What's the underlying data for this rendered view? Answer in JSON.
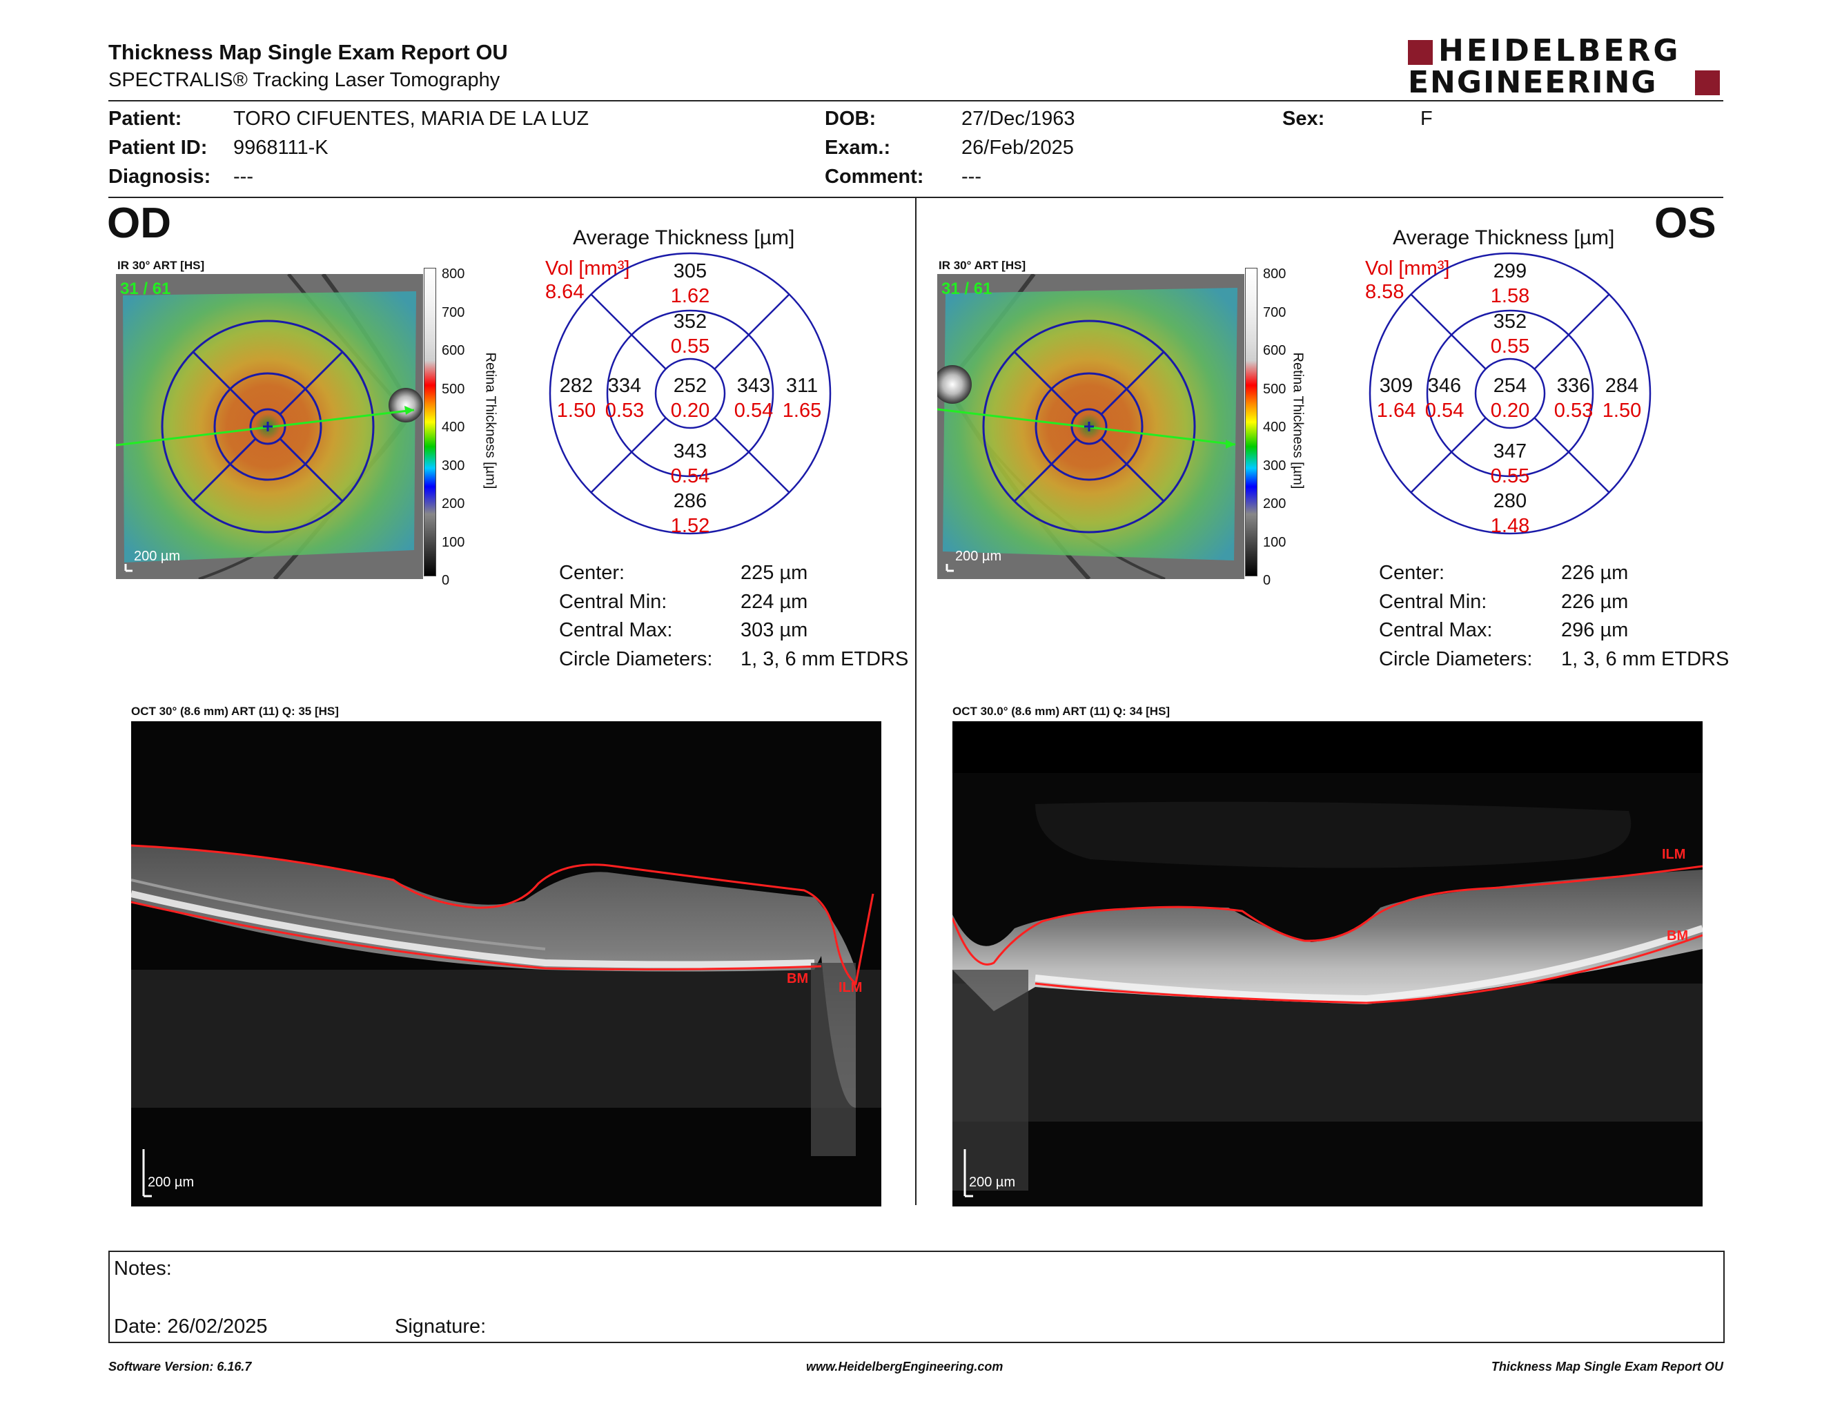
{
  "header": {
    "title": "Thickness Map Single Exam Report OU",
    "subtitle": "SPECTRALIS® Tracking Laser Tomography",
    "logo_line1": "HEIDELBERG",
    "logo_line2": "ENGINEERING",
    "brand_color": "#8b1a2b"
  },
  "patient": {
    "patient_label": "Patient:",
    "patient_value": "TORO CIFUENTES, MARIA DE LA LUZ",
    "id_label": "Patient ID:",
    "id_value": "9968111-K",
    "diagnosis_label": "Diagnosis:",
    "diagnosis_value": "---",
    "dob_label": "DOB:",
    "dob_value": "27/Dec/1963",
    "exam_label": "Exam.:",
    "exam_value": "26/Feb/2025",
    "comment_label": "Comment:",
    "comment_value": "---",
    "sex_label": "Sex:",
    "sex_value": "F"
  },
  "scale": {
    "labels": [
      "800",
      "700",
      "600",
      "500",
      "400",
      "300",
      "200",
      "100",
      "0"
    ],
    "title": "Retina  Thickness [µm]"
  },
  "od": {
    "eye": "OD",
    "ir_label": "IR 30° ART [HS]",
    "fundus_text": "31 / 61",
    "scale_bar": "200 µm",
    "avg_title": "Average Thickness [µm]",
    "vol_label": "Vol [mm³]",
    "vol_value": "8.64",
    "grid": {
      "center_t": "252",
      "center_v": "0.20",
      "in_sup_t": "352",
      "in_sup_v": "0.55",
      "in_inf_t": "343",
      "in_inf_v": "0.54",
      "in_tmp_t": "334",
      "in_tmp_v": "0.53",
      "in_nas_t": "343",
      "in_nas_v": "0.54",
      "out_sup_t": "305",
      "out_sup_v": "1.62",
      "out_inf_t": "286",
      "out_inf_v": "1.52",
      "out_tmp_t": "282",
      "out_tmp_v": "1.50",
      "out_nas_t": "311",
      "out_nas_v": "1.65"
    },
    "stats": [
      {
        "label": "Center:",
        "value": "225 µm"
      },
      {
        "label": "Central Min:",
        "value": "224 µm"
      },
      {
        "label": "Central Max:",
        "value": "303 µm"
      },
      {
        "label": "Circle Diameters:",
        "value": "1, 3, 6 mm ETDRS"
      }
    ],
    "oct_label": "OCT 30° (8.6 mm) ART (11) Q: 35 [HS]",
    "oct_scale": "200 µm",
    "ilm": "ILM",
    "bm": "BM"
  },
  "os": {
    "eye": "OS",
    "ir_label": "IR 30° ART [HS]",
    "fundus_text": "31 / 61",
    "scale_bar": "200 µm",
    "avg_title": "Average Thickness [µm]",
    "vol_label": "Vol [mm³]",
    "vol_value": "8.58",
    "grid": {
      "center_t": "254",
      "center_v": "0.20",
      "in_sup_t": "352",
      "in_sup_v": "0.55",
      "in_inf_t": "347",
      "in_inf_v": "0.55",
      "in_tmp_t": "336",
      "in_tmp_v": "0.53",
      "in_nas_t": "346",
      "in_nas_v": "0.54",
      "out_sup_t": "299",
      "out_sup_v": "1.58",
      "out_inf_t": "280",
      "out_inf_v": "1.48",
      "out_tmp_t": "284",
      "out_tmp_v": "1.50",
      "out_nas_t": "309",
      "out_nas_v": "1.64"
    },
    "stats": [
      {
        "label": "Center:",
        "value": "226 µm"
      },
      {
        "label": "Central Min:",
        "value": "226 µm"
      },
      {
        "label": "Central Max:",
        "value": "296 µm"
      },
      {
        "label": "Circle Diameters:",
        "value": "1, 3, 6 mm ETDRS"
      }
    ],
    "oct_label": "OCT 30.0° (8.6 mm) ART (11) Q: 34 [HS]",
    "oct_scale": "200 µm",
    "ilm": "ILM",
    "bm": "BM"
  },
  "notes": {
    "notes_label": "Notes:",
    "date_label": "Date: 26/02/2025",
    "signature_label": "Signature:"
  },
  "footer": {
    "software": "Software Version: 6.16.7",
    "website": "www.HeidelbergEngineering.com",
    "report": "Thickness Map Single Exam Report OU"
  },
  "colors": {
    "grid_line": "#1a1aa8",
    "volume_red": "#e00000",
    "segmentation_red": "#ff2020",
    "scan_line_green": "#22ee22"
  }
}
